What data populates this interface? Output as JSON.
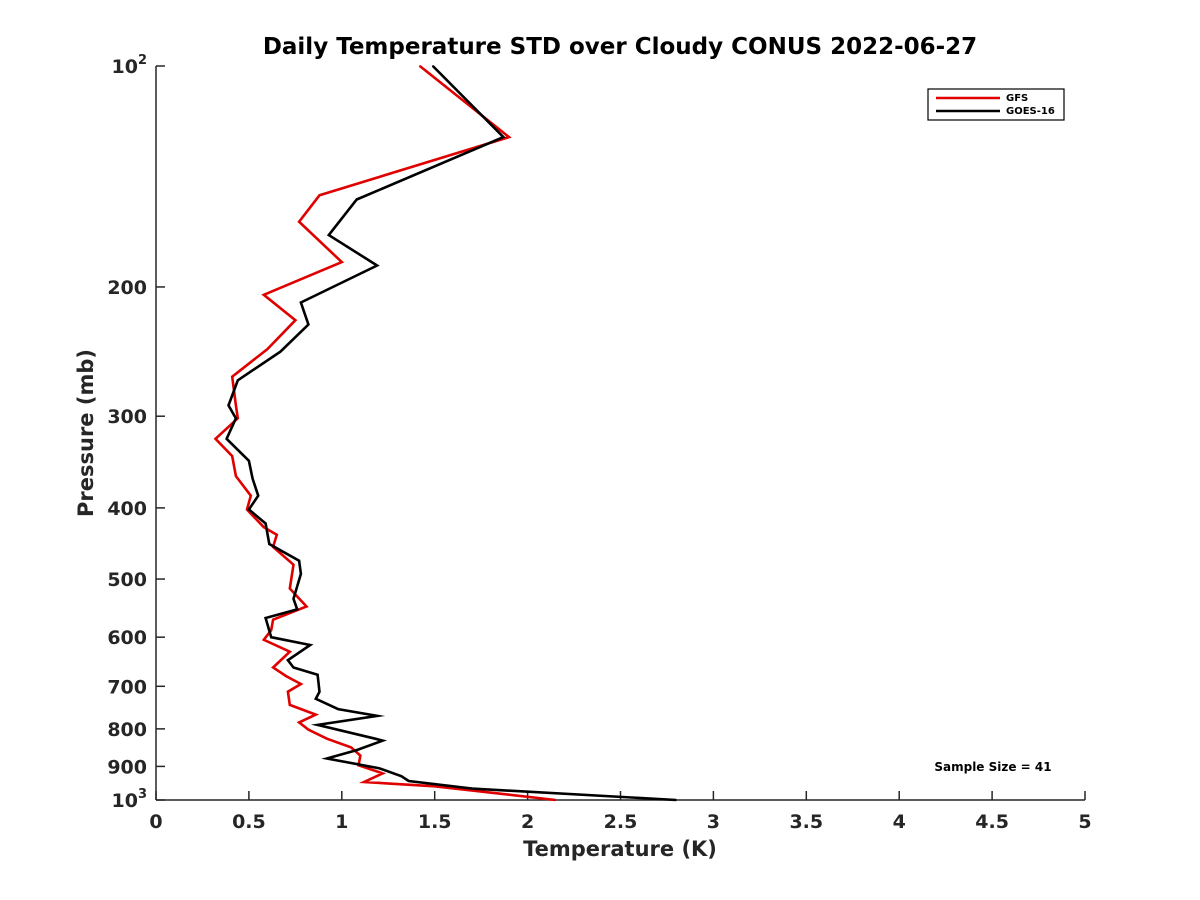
{
  "chart_data": {
    "type": "line",
    "title": "Daily Temperature STD over Cloudy CONUS 2022-06-27",
    "xlabel": "Temperature (K)",
    "ylabel": "Pressure (mb)",
    "xlim": [
      0,
      5
    ],
    "ylim": [
      100,
      1000
    ],
    "y_scale": "log",
    "y_reversed": true,
    "grid": false,
    "legend_position": "top-right",
    "x_ticks": [
      0,
      0.5,
      1,
      1.5,
      2,
      2.5,
      3,
      3.5,
      4,
      4.5,
      5
    ],
    "x_tick_labels": [
      "0",
      "0.5",
      "1",
      "1.5",
      "2",
      "2.5",
      "3",
      "3.5",
      "4",
      "4.5",
      "5"
    ],
    "y_ticks": [
      {
        "value": 100,
        "base": "10",
        "exp": "2"
      },
      {
        "value": 200,
        "label": "200"
      },
      {
        "value": 300,
        "label": "300"
      },
      {
        "value": 400,
        "label": "400"
      },
      {
        "value": 500,
        "label": "500"
      },
      {
        "value": 600,
        "label": "600"
      },
      {
        "value": 700,
        "label": "700"
      },
      {
        "value": 800,
        "label": "800"
      },
      {
        "value": 900,
        "label": "900"
      },
      {
        "value": 1000,
        "base": "10",
        "exp": "3"
      }
    ],
    "annotation": "Sample Size = 41",
    "series": [
      {
        "name": "GFS",
        "color": "#e00000",
        "points": [
          [
            1.42,
            100
          ],
          [
            1.9,
            125
          ],
          [
            0.88,
            150
          ],
          [
            0.77,
            163
          ],
          [
            1.0,
            185
          ],
          [
            0.58,
            205
          ],
          [
            0.75,
            222
          ],
          [
            0.6,
            243
          ],
          [
            0.41,
            265
          ],
          [
            0.43,
            290
          ],
          [
            0.44,
            302
          ],
          [
            0.32,
            322
          ],
          [
            0.41,
            340
          ],
          [
            0.43,
            362
          ],
          [
            0.51,
            385
          ],
          [
            0.49,
            402
          ],
          [
            0.58,
            425
          ],
          [
            0.65,
            435
          ],
          [
            0.63,
            452
          ],
          [
            0.74,
            478
          ],
          [
            0.72,
            515
          ],
          [
            0.81,
            545
          ],
          [
            0.63,
            568
          ],
          [
            0.62,
            587
          ],
          [
            0.58,
            605
          ],
          [
            0.72,
            628
          ],
          [
            0.63,
            660
          ],
          [
            0.7,
            678
          ],
          [
            0.78,
            695
          ],
          [
            0.71,
            712
          ],
          [
            0.72,
            742
          ],
          [
            0.86,
            765
          ],
          [
            0.77,
            784
          ],
          [
            0.82,
            802
          ],
          [
            0.92,
            825
          ],
          [
            1.05,
            848
          ],
          [
            1.1,
            870
          ],
          [
            1.09,
            897
          ],
          [
            1.22,
            920
          ],
          [
            1.12,
            945
          ],
          [
            1.5,
            958
          ],
          [
            2.15,
            1000
          ]
        ]
      },
      {
        "name": "GOES-16",
        "color": "#000000",
        "points": [
          [
            1.49,
            100
          ],
          [
            1.87,
            125
          ],
          [
            1.08,
            152
          ],
          [
            0.93,
            170
          ],
          [
            1.19,
            187
          ],
          [
            0.78,
            210
          ],
          [
            0.82,
            225
          ],
          [
            0.67,
            245
          ],
          [
            0.44,
            268
          ],
          [
            0.39,
            290
          ],
          [
            0.43,
            302
          ],
          [
            0.38,
            322
          ],
          [
            0.5,
            345
          ],
          [
            0.52,
            365
          ],
          [
            0.55,
            385
          ],
          [
            0.5,
            402
          ],
          [
            0.59,
            420
          ],
          [
            0.61,
            448
          ],
          [
            0.77,
            472
          ],
          [
            0.78,
            492
          ],
          [
            0.74,
            532
          ],
          [
            0.76,
            550
          ],
          [
            0.59,
            565
          ],
          [
            0.62,
            600
          ],
          [
            0.83,
            615
          ],
          [
            0.71,
            645
          ],
          [
            0.74,
            660
          ],
          [
            0.87,
            675
          ],
          [
            0.88,
            712
          ],
          [
            0.86,
            728
          ],
          [
            0.98,
            752
          ],
          [
            1.19,
            768
          ],
          [
            0.87,
            790
          ],
          [
            1.18,
            825
          ],
          [
            1.22,
            830
          ],
          [
            1.08,
            855
          ],
          [
            0.92,
            878
          ],
          [
            1.2,
            905
          ],
          [
            1.32,
            928
          ],
          [
            1.36,
            942
          ],
          [
            1.7,
            965
          ],
          [
            2.8,
            1000
          ]
        ]
      }
    ]
  }
}
